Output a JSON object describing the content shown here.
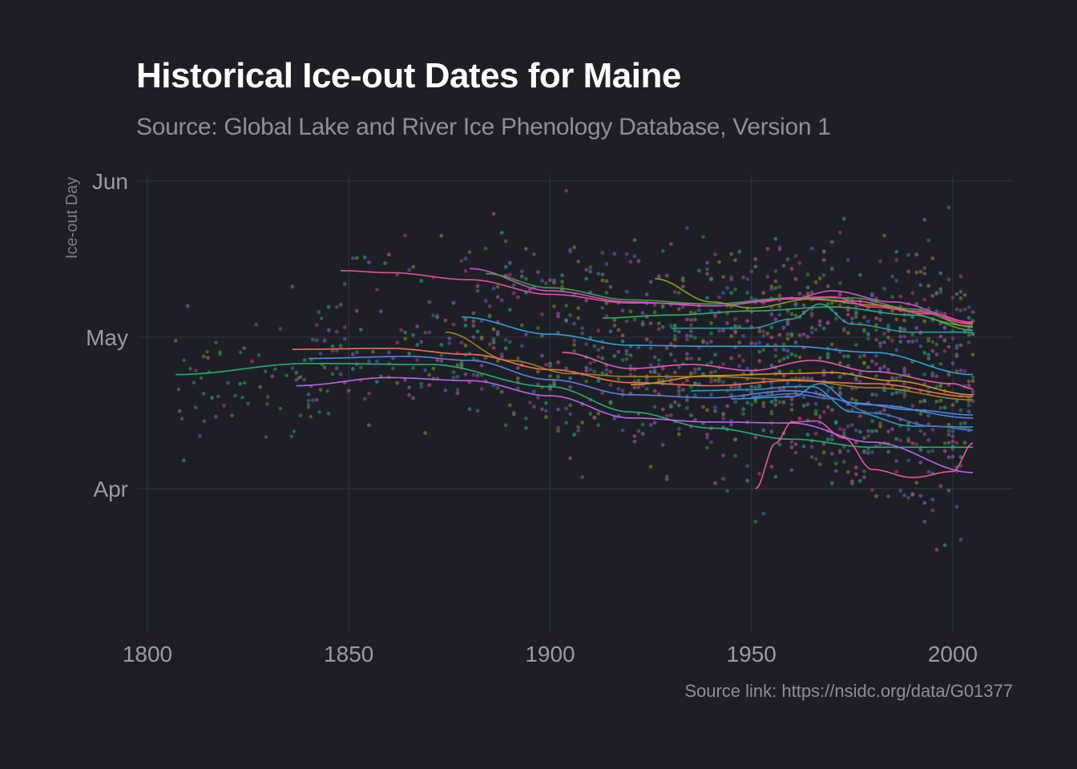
{
  "chart_data": {
    "type": "scatter",
    "title": "Historical Ice-out Dates for Maine",
    "subtitle": "Source: Global Lake and River Ice Phenology Database, Version 1",
    "caption": "Source link: https://nsidc.org/data/G01377",
    "xlabel": "",
    "ylabel": "Ice-out Day",
    "xlim": [
      1800,
      2015
    ],
    "ylim": [
      77,
      151
    ],
    "x_ticks": [
      {
        "value": 1800,
        "label": "1800"
      },
      {
        "value": 1850,
        "label": "1850"
      },
      {
        "value": 1900,
        "label": "1900"
      },
      {
        "value": 1950,
        "label": "1950"
      },
      {
        "value": 2000,
        "label": "2000"
      }
    ],
    "y_ticks": [
      {
        "value": 91,
        "label": "Apr"
      },
      {
        "value": 121,
        "label": "May"
      },
      {
        "value": 152,
        "label": "Jun"
      }
    ],
    "grid": true,
    "legend": "none",
    "point_colors": [
      "#7a4fa0",
      "#2f7a3a",
      "#8a3a6a",
      "#3a5aa0",
      "#6a7a20",
      "#a04a7a",
      "#2a8a7a"
    ],
    "series": [
      {
        "color": "#e84e9a",
        "x": [
          1848,
          1860,
          1880,
          1900,
          1920,
          1940,
          1960,
          1975,
          1990,
          2005
        ],
        "y": [
          134.2,
          133.8,
          132.4,
          129.5,
          127.8,
          127.6,
          128.6,
          128.2,
          126.2,
          123.6
        ]
      },
      {
        "color": "#d04fd0",
        "x": [
          1880,
          1900,
          1920,
          1940,
          1960,
          1970,
          1985,
          2005
        ],
        "y": [
          134.6,
          130.2,
          128.0,
          127.2,
          128.6,
          130.2,
          128.0,
          124.0
        ]
      },
      {
        "color": "#3fa040",
        "x": [
          1884,
          1900,
          1920,
          1940,
          1960,
          1975,
          1990,
          2005
        ],
        "y": [
          133.6,
          130.8,
          128.4,
          127.6,
          128.8,
          128.8,
          126.6,
          123.0
        ]
      },
      {
        "color": "#8aa020",
        "x": [
          1926,
          1940,
          1950,
          1965,
          1980,
          2005
        ],
        "y": [
          132.6,
          128.0,
          126.8,
          128.6,
          127.4,
          123.2
        ]
      },
      {
        "color": "#20a0a0",
        "x": [
          1930,
          1950,
          1960,
          1967,
          1975,
          1990,
          2005
        ],
        "y": [
          122.8,
          122.8,
          124.6,
          127.6,
          123.6,
          122.0,
          122.0
        ]
      },
      {
        "color": "#30b060",
        "x": [
          1913,
          1930,
          1950,
          1970,
          1990,
          2005
        ],
        "y": [
          124.8,
          125.4,
          126.2,
          127.0,
          125.4,
          122.4
        ]
      },
      {
        "color": "#30a0e0",
        "x": [
          1878,
          1900,
          1920,
          1940,
          1960,
          1980,
          2005
        ],
        "y": [
          125.0,
          121.6,
          119.4,
          119.2,
          119.2,
          118.0,
          113.6
        ]
      },
      {
        "color": "#a08020",
        "x": [
          1874,
          1890,
          1905,
          1920,
          1940,
          1960,
          1980,
          2005
        ],
        "y": [
          122.0,
          116.4,
          113.8,
          113.2,
          113.2,
          112.6,
          111.0,
          108.6
        ]
      },
      {
        "color": "#f07050",
        "x": [
          1836,
          1860,
          1880,
          1900,
          1920,
          1940,
          1960,
          1980,
          2005
        ],
        "y": [
          118.6,
          118.8,
          117.6,
          114.6,
          112.0,
          111.4,
          112.4,
          111.8,
          109.2
        ]
      },
      {
        "color": "#5a80e0",
        "x": [
          1840,
          1865,
          1880,
          1900,
          1920,
          1940,
          1960,
          1980,
          2005
        ],
        "y": [
          116.8,
          117.2,
          116.4,
          112.6,
          109.6,
          109.0,
          110.4,
          107.6,
          105.0
        ]
      },
      {
        "color": "#20b070",
        "x": [
          1807,
          1840,
          1870,
          1900,
          1920,
          1940,
          1960,
          1980,
          2005
        ],
        "y": [
          113.6,
          115.8,
          115.6,
          111.2,
          106.2,
          103.0,
          100.8,
          99.2,
          99.2
        ]
      },
      {
        "color": "#c060f0",
        "x": [
          1837,
          1860,
          1880,
          1900,
          1920,
          1940,
          1960,
          1980,
          2005
        ],
        "y": [
          111.4,
          113.0,
          112.4,
          109.4,
          105.0,
          104.2,
          104.0,
          100.2,
          94.2
        ]
      },
      {
        "color": "#e85ab0",
        "x": [
          1903,
          1920,
          1935,
          1950,
          1965,
          1980,
          2000,
          2005
        ],
        "y": [
          118.0,
          114.8,
          115.6,
          114.4,
          116.4,
          114.2,
          111.8,
          110.8
        ]
      },
      {
        "color": "#e0901a",
        "x": [
          1920,
          1940,
          1960,
          1970,
          1985,
          2005
        ],
        "y": [
          111.6,
          113.4,
          113.8,
          114.0,
          112.4,
          109.6
        ]
      },
      {
        "color": "#3a90f0",
        "x": [
          1945,
          1960,
          1967,
          1975,
          1990,
          2005
        ],
        "y": [
          108.8,
          109.2,
          111.8,
          108.0,
          106.6,
          105.6
        ]
      },
      {
        "color": "#20a0c0",
        "x": [
          1935,
          1950,
          1960,
          1965,
          1975,
          1990,
          2005
        ],
        "y": [
          110.4,
          110.6,
          111.2,
          111.2,
          106.2,
          103.4,
          103.2
        ]
      },
      {
        "color": "#4a70d0",
        "x": [
          1950,
          1960,
          1970,
          1980,
          1995,
          2005
        ],
        "y": [
          109.2,
          109.8,
          108.8,
          106.0,
          103.4,
          102.6
        ]
      },
      {
        "color": "#f050a0",
        "x": [
          1951,
          1956,
          1960,
          1966,
          1973,
          1980,
          1990,
          2000,
          2005
        ],
        "y": [
          91.0,
          100.0,
          104.2,
          104.4,
          101.0,
          94.8,
          93.2,
          94.4,
          100.0
        ]
      },
      {
        "color": "#ff3aa8",
        "x": [
          1952,
          1960,
          1970,
          1980,
          1995,
          2005
        ],
        "y": [
          128.0,
          128.8,
          129.0,
          127.0,
          125.6,
          123.8
        ]
      }
    ]
  }
}
